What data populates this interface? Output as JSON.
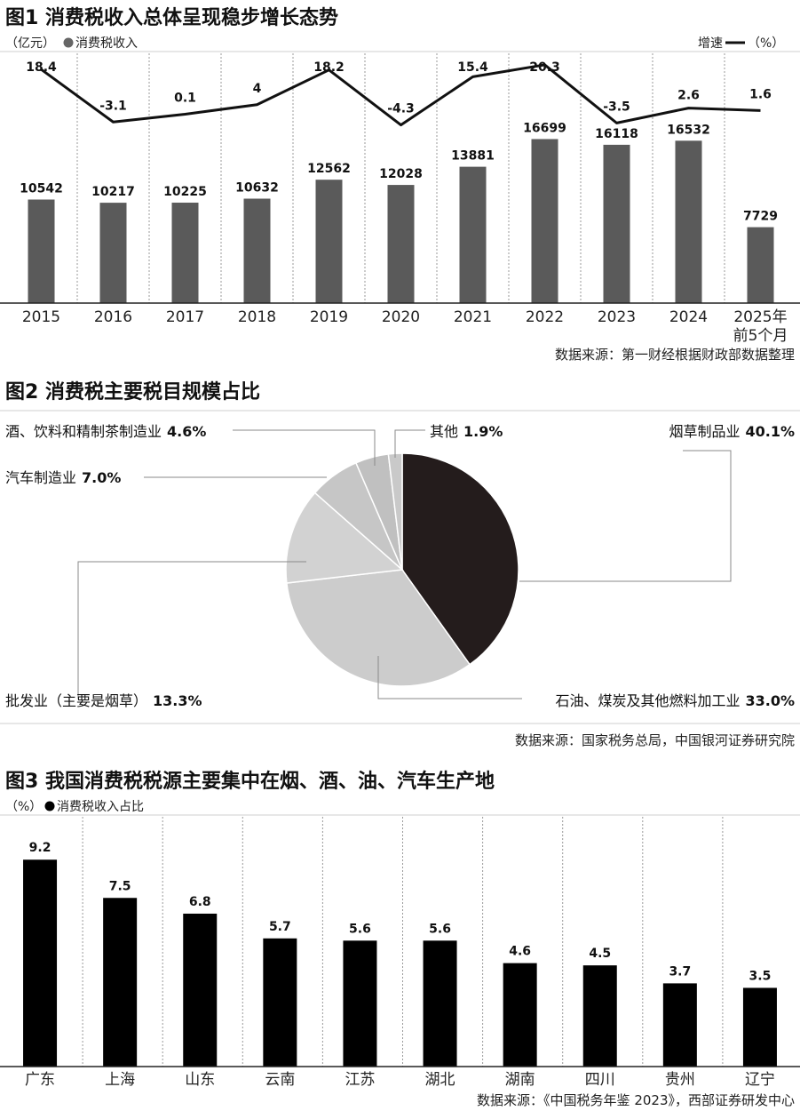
{
  "chart_data": [
    {
      "type": "bar",
      "title": "图1 消费税收入总体呈现稳步增长态势",
      "left_unit": "（亿元）",
      "bar_legend": "消费税收入",
      "right_legend": "增速",
      "right_unit": "（%）",
      "categories": [
        "2015",
        "2016",
        "2017",
        "2018",
        "2019",
        "2020",
        "2021",
        "2022",
        "2023",
        "2024",
        "2025年前5个月"
      ],
      "category_lines": [
        [
          "2015"
        ],
        [
          "2016"
        ],
        [
          "2017"
        ],
        [
          "2018"
        ],
        [
          "2019"
        ],
        [
          "2020"
        ],
        [
          "2021"
        ],
        [
          "2022"
        ],
        [
          "2023"
        ],
        [
          "2024"
        ],
        [
          "2025年",
          "前5个月"
        ]
      ],
      "series": [
        {
          "name": "消费税收入",
          "type": "bar",
          "values": [
            10542,
            10217,
            10225,
            10632,
            12562,
            12028,
            13881,
            16699,
            16118,
            16532,
            7729
          ]
        },
        {
          "name": "增速",
          "type": "line",
          "values": [
            18.4,
            -3.1,
            0.1,
            4,
            18.2,
            -4.3,
            15.4,
            20.3,
            -3.5,
            2.6,
            1.6
          ]
        }
      ],
      "bar_ylim": [
        0,
        20000
      ],
      "line_ylim": [
        -15,
        25
      ],
      "bar_color": "#5a5a5a",
      "line_color": "#111111",
      "source": "数据来源：第一财经根据财政部数据整理"
    },
    {
      "type": "pie",
      "title": "图2 消费税主要税目规模占比",
      "slices": [
        {
          "label": "烟草制品业",
          "value": 40.1,
          "value_text": "40.1%",
          "color": "#241c1c"
        },
        {
          "label": "石油、煤炭及其他燃料加工业",
          "value": 33.0,
          "value_text": "33.0%",
          "color": "#cccccc"
        },
        {
          "label": "批发业（主要是烟草）",
          "value": 13.3,
          "value_text": "13.3%",
          "color": "#d2d2d2"
        },
        {
          "label": "汽车制造业",
          "value": 7.0,
          "value_text": "7.0%",
          "color": "#c6c6c6"
        },
        {
          "label": "酒、饮料和精制茶制造业",
          "value": 4.6,
          "value_text": "4.6%",
          "color": "#c0c0c0"
        },
        {
          "label": "其他",
          "value": 1.9,
          "value_text": "1.9%",
          "color": "#c9c9c9"
        }
      ],
      "source": "数据来源：国家税务总局，中国银河证券研究院"
    },
    {
      "type": "bar",
      "title": "图3 我国消费税税源主要集中在烟、酒、油、汽车生产地",
      "unit": "（%）",
      "legend": "消费税收入占比",
      "categories": [
        "广东",
        "上海",
        "山东",
        "云南",
        "江苏",
        "湖北",
        "湖南",
        "四川",
        "贵州",
        "辽宁"
      ],
      "values": [
        9.2,
        7.5,
        6.8,
        5.7,
        5.6,
        5.6,
        4.6,
        4.5,
        3.7,
        3.5
      ],
      "ylim": [
        0,
        10
      ],
      "bar_color": "#000000",
      "source": "数据来源：《中国税务年鉴 2023》，西部证券研发中心"
    }
  ]
}
